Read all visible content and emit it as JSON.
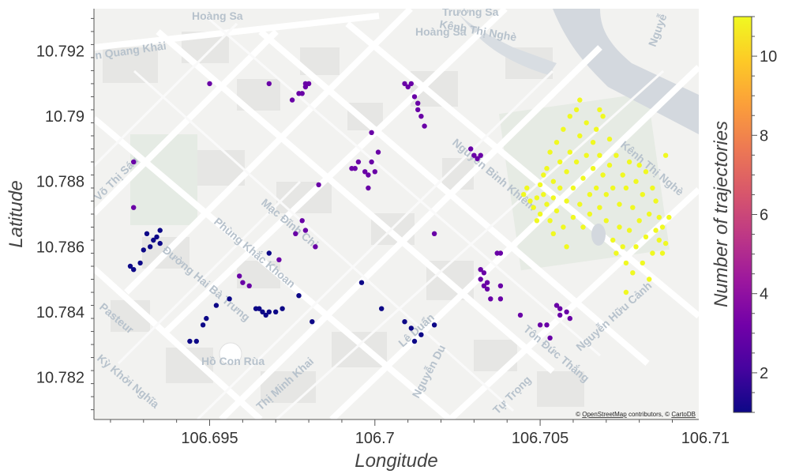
{
  "attribution": {
    "prefix": "©",
    "osm_link": "OpenStreetMap",
    "middle": "contributors, ©",
    "carto_link": "CartoDB"
  },
  "street_labels": [
    "Hoàng Sa",
    "Trường Sa",
    "Kênh Thị Nghè",
    "Hoàng Sa",
    "n Quang Khải",
    "Võ Thị Sáu",
    "Mạc Đĩnh Chi",
    "Phùng Khắc Khoan",
    "Đường Hai Bà Trưng",
    "Pasteur",
    "Hồ Con Rùa",
    "Kỳ Khởi Nghĩa",
    "Thị Minh Khai",
    "Nguyễn Bỉnh Khiêm",
    "Lê Duẩn",
    "Nguyễn Du",
    "Tôn Đức Thắng",
    "Tự Trọng",
    "Nguyễn Hữu Cảnh",
    "Kênh Thị Nghè",
    "Nguyễ"
  ],
  "chart_data": {
    "type": "scatter",
    "title": "",
    "xlabel": "Longitude",
    "ylabel": "Latitude",
    "xlim": [
      106.6915,
      106.7098
    ],
    "ylim": [
      10.7807,
      10.7933
    ],
    "xticks": [
      "106.695",
      "106.7",
      "106.705",
      "106.71"
    ],
    "yticks": [
      "10.782",
      "10.784",
      "10.786",
      "10.788",
      "10.79",
      "10.792"
    ],
    "colorbar": {
      "title": "Number of trajectories",
      "colorscale": "plasma",
      "range": [
        1,
        11
      ],
      "ticks": [
        "2",
        "4",
        "6",
        "8",
        "10"
      ]
    },
    "basemap": "CartoDB Positron",
    "series": [
      {
        "color_value": 1,
        "points": [
          [
            106.6926,
            10.7854
          ],
          [
            106.6927,
            10.7853
          ],
          [
            106.6929,
            10.7855
          ],
          [
            106.693,
            10.7859
          ],
          [
            106.6931,
            10.7864
          ],
          [
            106.6932,
            10.786
          ],
          [
            106.6933,
            10.7862
          ],
          [
            106.6934,
            10.7863
          ],
          [
            106.6935,
            10.7865
          ],
          [
            106.6935,
            10.7861
          ],
          [
            106.6948,
            10.7836
          ],
          [
            106.6949,
            10.7838
          ],
          [
            106.6944,
            10.7831
          ],
          [
            106.6946,
            10.7831
          ],
          [
            106.6952,
            10.7842
          ],
          [
            106.6956,
            10.7844
          ],
          [
            106.6964,
            10.7841
          ],
          [
            106.6965,
            10.7841
          ],
          [
            106.6966,
            10.784
          ],
          [
            106.6967,
            10.7839
          ],
          [
            106.6968,
            10.784
          ],
          [
            106.697,
            10.784
          ],
          [
            106.6972,
            10.7841
          ],
          [
            106.6977,
            10.7845
          ],
          [
            106.6981,
            10.7837
          ],
          [
            106.6968,
            10.7858
          ],
          [
            106.6996,
            10.7849
          ],
          [
            106.7002,
            10.7841
          ],
          [
            106.7009,
            10.7837
          ],
          [
            106.7011,
            10.7835
          ],
          [
            106.7012,
            10.7831
          ],
          [
            106.7014,
            10.7833
          ],
          [
            106.7018,
            10.7836
          ]
        ]
      },
      {
        "color_value": 3,
        "points": [
          [
            106.6927,
            10.7886
          ],
          [
            106.6927,
            10.7872
          ],
          [
            106.695,
            10.791
          ],
          [
            106.6968,
            10.791
          ],
          [
            106.6975,
            10.7905
          ],
          [
            106.6977,
            10.7907
          ],
          [
            106.6978,
            10.7907
          ],
          [
            106.6979,
            10.7909
          ],
          [
            106.6979,
            10.791
          ],
          [
            106.698,
            10.791
          ],
          [
            106.6978,
            10.7868
          ],
          [
            106.6976,
            10.7864
          ],
          [
            106.6979,
            10.7865
          ],
          [
            106.6982,
            10.786
          ],
          [
            106.6983,
            10.7879
          ],
          [
            106.6971,
            10.7856
          ],
          [
            106.696,
            10.7849
          ],
          [
            106.6959,
            10.7851
          ],
          [
            106.6962,
            10.7848
          ],
          [
            106.6993,
            10.7884
          ],
          [
            106.6994,
            10.7884
          ],
          [
            106.6995,
            10.7886
          ],
          [
            106.6997,
            10.7883
          ],
          [
            106.6998,
            10.7882
          ],
          [
            106.6998,
            10.7878
          ],
          [
            106.6999,
            10.7886
          ],
          [
            106.6999,
            10.7895
          ],
          [
            106.7,
            10.7883
          ],
          [
            106.7001,
            10.7889
          ],
          [
            106.7009,
            10.791
          ],
          [
            106.701,
            10.7909
          ],
          [
            106.7011,
            10.791
          ],
          [
            106.7012,
            10.7906
          ],
          [
            106.7013,
            10.7904
          ],
          [
            106.7013,
            10.7902
          ],
          [
            106.7014,
            10.79
          ],
          [
            106.7015,
            10.7897
          ],
          [
            106.7018,
            10.7864
          ],
          [
            106.7029,
            10.789
          ],
          [
            106.703,
            10.7888
          ],
          [
            106.7031,
            10.7887
          ],
          [
            106.7032,
            10.7888
          ],
          [
            106.7032,
            10.7853
          ],
          [
            106.7032,
            10.785
          ],
          [
            106.7033,
            10.7852
          ],
          [
            106.7033,
            10.7848
          ],
          [
            106.7034,
            10.7847
          ],
          [
            106.7034,
            10.7849
          ],
          [
            106.7035,
            10.7844
          ],
          [
            106.7037,
            10.7858
          ],
          [
            106.7038,
            10.7858
          ],
          [
            106.7038,
            10.7848
          ],
          [
            106.7038,
            10.7844
          ],
          [
            106.7044,
            10.7839
          ],
          [
            106.705,
            10.7836
          ],
          [
            106.7052,
            10.7836
          ],
          [
            106.7053,
            10.7832
          ],
          [
            106.7055,
            10.7842
          ],
          [
            106.7056,
            10.7841
          ],
          [
            106.7056,
            10.7839
          ],
          [
            106.7058,
            10.784
          ],
          [
            106.7059,
            10.7838
          ]
        ]
      },
      {
        "color_value": 11,
        "points": [
          [
            106.7045,
            10.7876
          ],
          [
            106.7046,
            10.7878
          ],
          [
            106.7047,
            10.7874
          ],
          [
            106.7048,
            10.7872
          ],
          [
            106.7049,
            10.7868
          ],
          [
            106.7049,
            10.7875
          ],
          [
            106.705,
            10.7879
          ],
          [
            106.705,
            10.787
          ],
          [
            106.7051,
            10.7882
          ],
          [
            106.7051,
            10.7876
          ],
          [
            106.7052,
            10.7873
          ],
          [
            106.7052,
            10.7884
          ],
          [
            106.7053,
            10.7868
          ],
          [
            106.7053,
            10.7889
          ],
          [
            106.7054,
            10.788
          ],
          [
            106.7054,
            10.7875
          ],
          [
            106.7055,
            10.7892
          ],
          [
            106.7055,
            10.7871
          ],
          [
            106.7056,
            10.7886
          ],
          [
            106.7056,
            10.7878
          ],
          [
            106.7057,
            10.7896
          ],
          [
            106.7057,
            10.7866
          ],
          [
            106.7058,
            10.7883
          ],
          [
            106.7058,
            10.7874
          ],
          [
            106.7059,
            10.79
          ],
          [
            106.7059,
            10.7889
          ],
          [
            106.706,
            10.7878
          ],
          [
            106.706,
            10.7869
          ],
          [
            106.7061,
            10.7902
          ],
          [
            106.7061,
            10.7886
          ],
          [
            106.7062,
            10.7873
          ],
          [
            106.7062,
            10.7894
          ],
          [
            106.7063,
            10.7881
          ],
          [
            106.7063,
            10.7866
          ],
          [
            106.7064,
            10.7898
          ],
          [
            106.7064,
            10.7888
          ],
          [
            106.7065,
            10.7876
          ],
          [
            106.7065,
            10.787
          ],
          [
            106.7066,
            10.7892
          ],
          [
            106.7066,
            10.7884
          ],
          [
            106.7067,
            10.7878
          ],
          [
            106.7067,
            10.7896
          ],
          [
            106.7068,
            10.7888
          ],
          [
            106.7068,
            10.7872
          ],
          [
            106.7069,
            10.79
          ],
          [
            106.7069,
            10.7882
          ],
          [
            106.707,
            10.7876
          ],
          [
            106.707,
            10.7868
          ],
          [
            106.7071,
            10.7893
          ],
          [
            106.7071,
            10.7885
          ],
          [
            106.7072,
            10.7878
          ],
          [
            106.7072,
            10.7862
          ],
          [
            106.7073,
            10.7888
          ],
          [
            106.7073,
            10.7858
          ],
          [
            106.7074,
            10.7873
          ],
          [
            106.7074,
            10.7866
          ],
          [
            106.7075,
            10.7882
          ],
          [
            106.7075,
            10.786
          ],
          [
            106.7076,
            10.7878
          ],
          [
            106.7076,
            10.7855
          ],
          [
            106.7077,
            10.7886
          ],
          [
            106.7077,
            10.7865
          ],
          [
            106.7078,
            10.7872
          ],
          [
            106.7078,
            10.7852
          ],
          [
            106.7079,
            10.788
          ],
          [
            106.7079,
            10.786
          ],
          [
            106.708,
            10.7885
          ],
          [
            106.708,
            10.7868
          ],
          [
            106.7081,
            10.7876
          ],
          [
            106.7081,
            10.7855
          ],
          [
            106.7082,
            10.7883
          ],
          [
            106.7082,
            10.7863
          ],
          [
            106.7083,
            10.787
          ],
          [
            106.7083,
            10.785
          ],
          [
            106.7084,
            10.7878
          ],
          [
            106.7084,
            10.7858
          ],
          [
            106.7085,
            10.7865
          ],
          [
            106.7085,
            10.7874
          ],
          [
            106.7086,
            10.7862
          ],
          [
            106.7086,
            10.7869
          ],
          [
            106.7087,
            10.7858
          ],
          [
            106.7087,
            10.7866
          ],
          [
            106.7088,
            10.7861
          ],
          [
            106.7088,
            10.7888
          ],
          [
            106.7089,
            10.7869
          ],
          [
            106.7076,
            10.7846
          ],
          [
            106.7062,
            10.7905
          ],
          [
            106.7068,
            10.7902
          ],
          [
            106.7058,
            10.786
          ],
          [
            106.7054,
            10.7864
          ]
        ]
      }
    ]
  }
}
